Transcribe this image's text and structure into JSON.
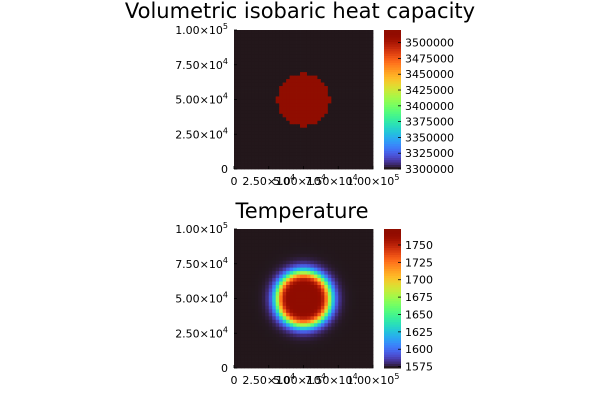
{
  "chart_data": [
    {
      "type": "heatmap",
      "title": "Volumetric isobaric heat capacity",
      "xlabel": "",
      "ylabel": "",
      "xlim": [
        0,
        100000
      ],
      "ylim": [
        0,
        100000
      ],
      "x_ticks": [
        {
          "value": 0,
          "mant": "0",
          "exp": ""
        },
        {
          "value": 25000,
          "mant": "2.50×10",
          "exp": "4"
        },
        {
          "value": 50000,
          "mant": "5.00×10",
          "exp": "4"
        },
        {
          "value": 75000,
          "mant": "7.50×10",
          "exp": "4"
        },
        {
          "value": 100000,
          "mant": "1.00×10",
          "exp": "5"
        }
      ],
      "y_ticks": [
        {
          "value": 0,
          "mant": "0",
          "exp": ""
        },
        {
          "value": 25000,
          "mant": "2.50×10",
          "exp": "4"
        },
        {
          "value": 50000,
          "mant": "5.00×10",
          "exp": "4"
        },
        {
          "value": 75000,
          "mant": "7.50×10",
          "exp": "4"
        },
        {
          "value": 100000,
          "mant": "1.00×10",
          "exp": "5"
        }
      ],
      "colorbar": {
        "range": [
          3300000,
          3520000
        ],
        "colormap": "turbo",
        "ticks": [
          {
            "value": 3300000,
            "label": "3300000"
          },
          {
            "value": 3325000,
            "label": "3325000"
          },
          {
            "value": 3350000,
            "label": "3350000"
          },
          {
            "value": 3375000,
            "label": "3375000"
          },
          {
            "value": 3400000,
            "label": "3400000"
          },
          {
            "value": 3425000,
            "label": "3425000"
          },
          {
            "value": 3450000,
            "label": "3450000"
          },
          {
            "value": 3475000,
            "label": "3475000"
          },
          {
            "value": 3500000,
            "label": "3500000"
          }
        ]
      },
      "field": {
        "kind": "disk",
        "center": [
          50000,
          50000
        ],
        "radius": 19000,
        "inside_value": 3520000,
        "outside_value": 3300000,
        "grid_cells": 40
      }
    },
    {
      "type": "heatmap",
      "title": "Temperature",
      "xlabel": "",
      "ylabel": "",
      "xlim": [
        0,
        100000
      ],
      "ylim": [
        0,
        100000
      ],
      "x_ticks": [
        {
          "value": 0,
          "mant": "0",
          "exp": ""
        },
        {
          "value": 25000,
          "mant": "2.50×10",
          "exp": "4"
        },
        {
          "value": 50000,
          "mant": "5.00×10",
          "exp": "4"
        },
        {
          "value": 75000,
          "mant": "7.50×10",
          "exp": "4"
        },
        {
          "value": 100000,
          "mant": "1.00×10",
          "exp": "5"
        }
      ],
      "y_ticks": [
        {
          "value": 0,
          "mant": "0",
          "exp": ""
        },
        {
          "value": 25000,
          "mant": "2.50×10",
          "exp": "4"
        },
        {
          "value": 50000,
          "mant": "5.00×10",
          "exp": "4"
        },
        {
          "value": 75000,
          "mant": "7.50×10",
          "exp": "4"
        },
        {
          "value": 100000,
          "mant": "1.00×10",
          "exp": "5"
        }
      ],
      "colorbar": {
        "range": [
          1573,
          1773
        ],
        "colormap": "turbo",
        "ticks": [
          {
            "value": 1575,
            "label": "1575"
          },
          {
            "value": 1600,
            "label": "1600"
          },
          {
            "value": 1625,
            "label": "1625"
          },
          {
            "value": 1650,
            "label": "1650"
          },
          {
            "value": 1675,
            "label": "1675"
          },
          {
            "value": 1700,
            "label": "1700"
          },
          {
            "value": 1725,
            "label": "1725"
          },
          {
            "value": 1750,
            "label": "1750"
          }
        ]
      },
      "field": {
        "kind": "smoothed-disk",
        "center": [
          50000,
          50000
        ],
        "radius": 19000,
        "transition_width": 5000,
        "inside_value": 1773,
        "outside_value": 1573,
        "grid_cells": 40
      }
    }
  ]
}
